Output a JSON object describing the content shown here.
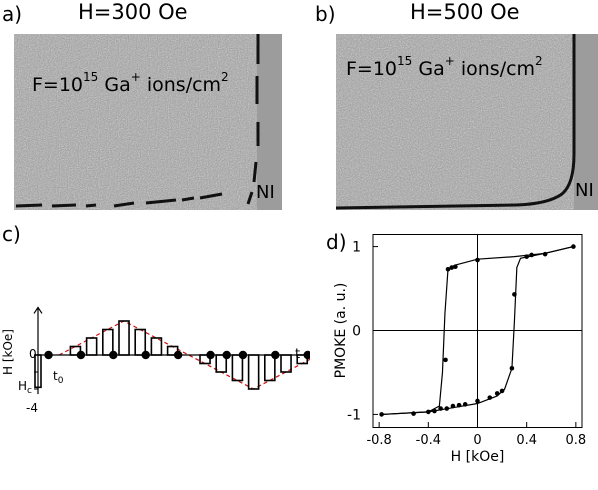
{
  "panels": {
    "a": {
      "label": "a)",
      "title": "H=300 Oe",
      "fluence_prefix": "F=10",
      "fluence_exp": "15",
      "fluence_species": "Ga",
      "fluence_charge": "+",
      "fluence_units": "ions/cm",
      "fluence_units_exp": "2",
      "region_label": "NI"
    },
    "b": {
      "label": "b)",
      "title": "H=500 Oe",
      "fluence_prefix": "F=10",
      "fluence_exp": "15",
      "fluence_species": "Ga",
      "fluence_charge": "+",
      "fluence_units": "ions/cm",
      "fluence_units_exp": "2",
      "region_label": "NI"
    },
    "c": {
      "label": "c)",
      "ylabel": "H [kOe]",
      "xlabel": "t",
      "tick_zero": "0",
      "tick_hc": "H",
      "tick_hc_sub": "c",
      "tick_neg4": "-4",
      "t0_label": "t",
      "t0_sub": "0"
    },
    "d": {
      "label": "d)"
    }
  },
  "colors": {
    "envelope": "#d01010",
    "curve": "#000000",
    "image_bg": "#9a9a9a"
  },
  "chart_data": [
    {
      "type": "bar",
      "panel": "c",
      "title": "",
      "xlabel": "t",
      "ylabel": "H [kOe]",
      "ylim": [
        -4.6,
        4.6
      ],
      "pulse_amplitudes": [
        -3.8,
        0,
        1.0,
        2.0,
        3.0,
        4.0,
        3.0,
        2.0,
        1.0,
        0,
        -1.0,
        -2.0,
        -3.0,
        -4.0,
        -3.0,
        -2.0,
        -1.0
      ],
      "measurement_points": [
        0,
        1,
        2,
        3,
        4,
        5,
        6,
        7,
        8,
        9
      ],
      "envelope": [
        [
          1,
          0
        ],
        [
          5,
          4.0
        ],
        [
          9,
          0
        ],
        [
          13,
          -4.0
        ],
        [
          17,
          0
        ]
      ],
      "hc": -2.0,
      "yticks": [
        "0",
        "Hc",
        "-4"
      ]
    },
    {
      "type": "line",
      "panel": "d",
      "title": "",
      "xlabel": "H [kOe]",
      "ylabel": "PMOKE (a. u.)",
      "xlim": [
        -0.85,
        0.85
      ],
      "ylim": [
        -1.15,
        1.15
      ],
      "xticks": [
        -0.8,
        -0.4,
        0,
        0.4,
        0.8
      ],
      "xtick_labels": [
        "-0.8",
        "-0.4",
        "0",
        "0.4",
        "0.8"
      ],
      "yticks": [
        1,
        0,
        -1
      ],
      "ytick_labels": [
        "1",
        "0",
        "-1"
      ],
      "grid": false,
      "series": [
        {
          "points": [
            [
              -0.78,
              -1.0
            ],
            [
              -0.52,
              -0.99
            ],
            [
              -0.4,
              -0.97
            ],
            [
              -0.35,
              -0.96
            ],
            [
              -0.3,
              -0.93
            ],
            [
              -0.26,
              -0.35
            ],
            [
              -0.24,
              0.73
            ],
            [
              -0.21,
              0.75
            ],
            [
              -0.18,
              0.76
            ],
            [
              0.0,
              0.84
            ],
            [
              0.4,
              0.88
            ],
            [
              0.44,
              0.9
            ],
            [
              0.55,
              0.91
            ],
            [
              0.78,
              1.0
            ],
            [
              0.3,
              0.43
            ],
            [
              0.28,
              -0.45
            ],
            [
              0.2,
              -0.72
            ],
            [
              0.16,
              -0.75
            ],
            [
              0.1,
              -0.8
            ],
            [
              0.0,
              -0.84
            ],
            [
              -0.1,
              -0.88
            ],
            [
              -0.15,
              -0.89
            ],
            [
              -0.2,
              -0.9
            ],
            [
              -0.25,
              -0.93
            ]
          ]
        }
      ],
      "descending_branch": [
        [
          0.78,
          1.0
        ],
        [
          0.55,
          0.92
        ],
        [
          0.3,
          0.88
        ],
        [
          0.0,
          0.85
        ],
        [
          -0.18,
          0.78
        ],
        [
          -0.21,
          0.76
        ],
        [
          -0.24,
          0.73
        ],
        [
          -0.265,
          0.2
        ],
        [
          -0.285,
          -0.5
        ],
        [
          -0.31,
          -0.9
        ],
        [
          -0.4,
          -0.97
        ],
        [
          -0.78,
          -1.0
        ]
      ],
      "ascending_branch": [
        [
          -0.78,
          -1.0
        ],
        [
          -0.4,
          -0.97
        ],
        [
          -0.2,
          -0.92
        ],
        [
          0.0,
          -0.87
        ],
        [
          0.16,
          -0.78
        ],
        [
          0.22,
          -0.7
        ],
        [
          0.28,
          -0.45
        ],
        [
          0.3,
          0.1
        ],
        [
          0.32,
          0.75
        ],
        [
          0.35,
          0.86
        ],
        [
          0.55,
          0.92
        ],
        [
          0.78,
          1.0
        ]
      ]
    }
  ]
}
